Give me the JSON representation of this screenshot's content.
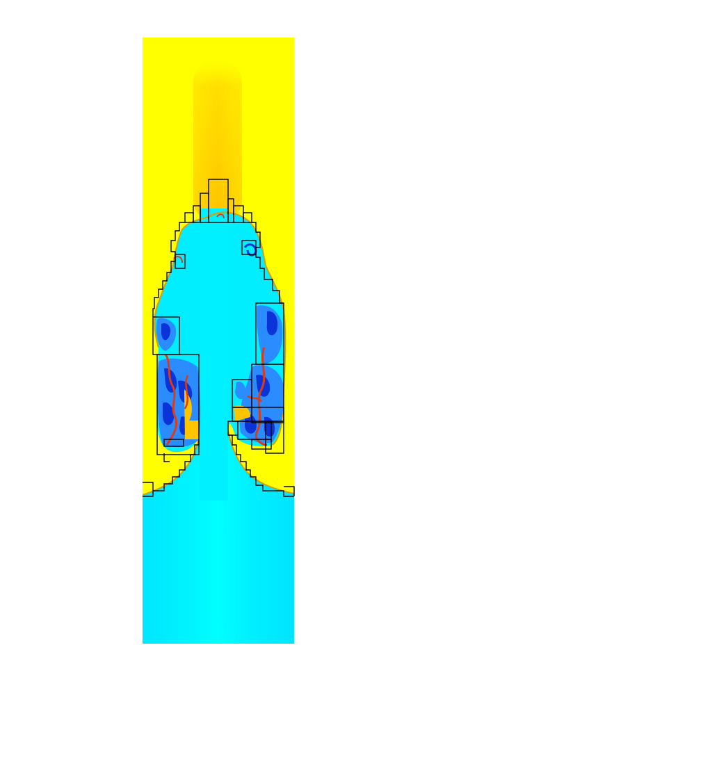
{
  "figure": {
    "kind": "fluid-simulation-density-field",
    "colors": {
      "heavy_fluid": "#ffff00",
      "light_fluid": "#00eeff",
      "mixing_dark": "#0a34d8",
      "mixing_mid": "#2a8cff",
      "interface": "#e03a12",
      "warm_plume": "#ffc400",
      "grid_lines": "#000000",
      "background": "#ffffff"
    },
    "refinement_grid": "visible"
  }
}
